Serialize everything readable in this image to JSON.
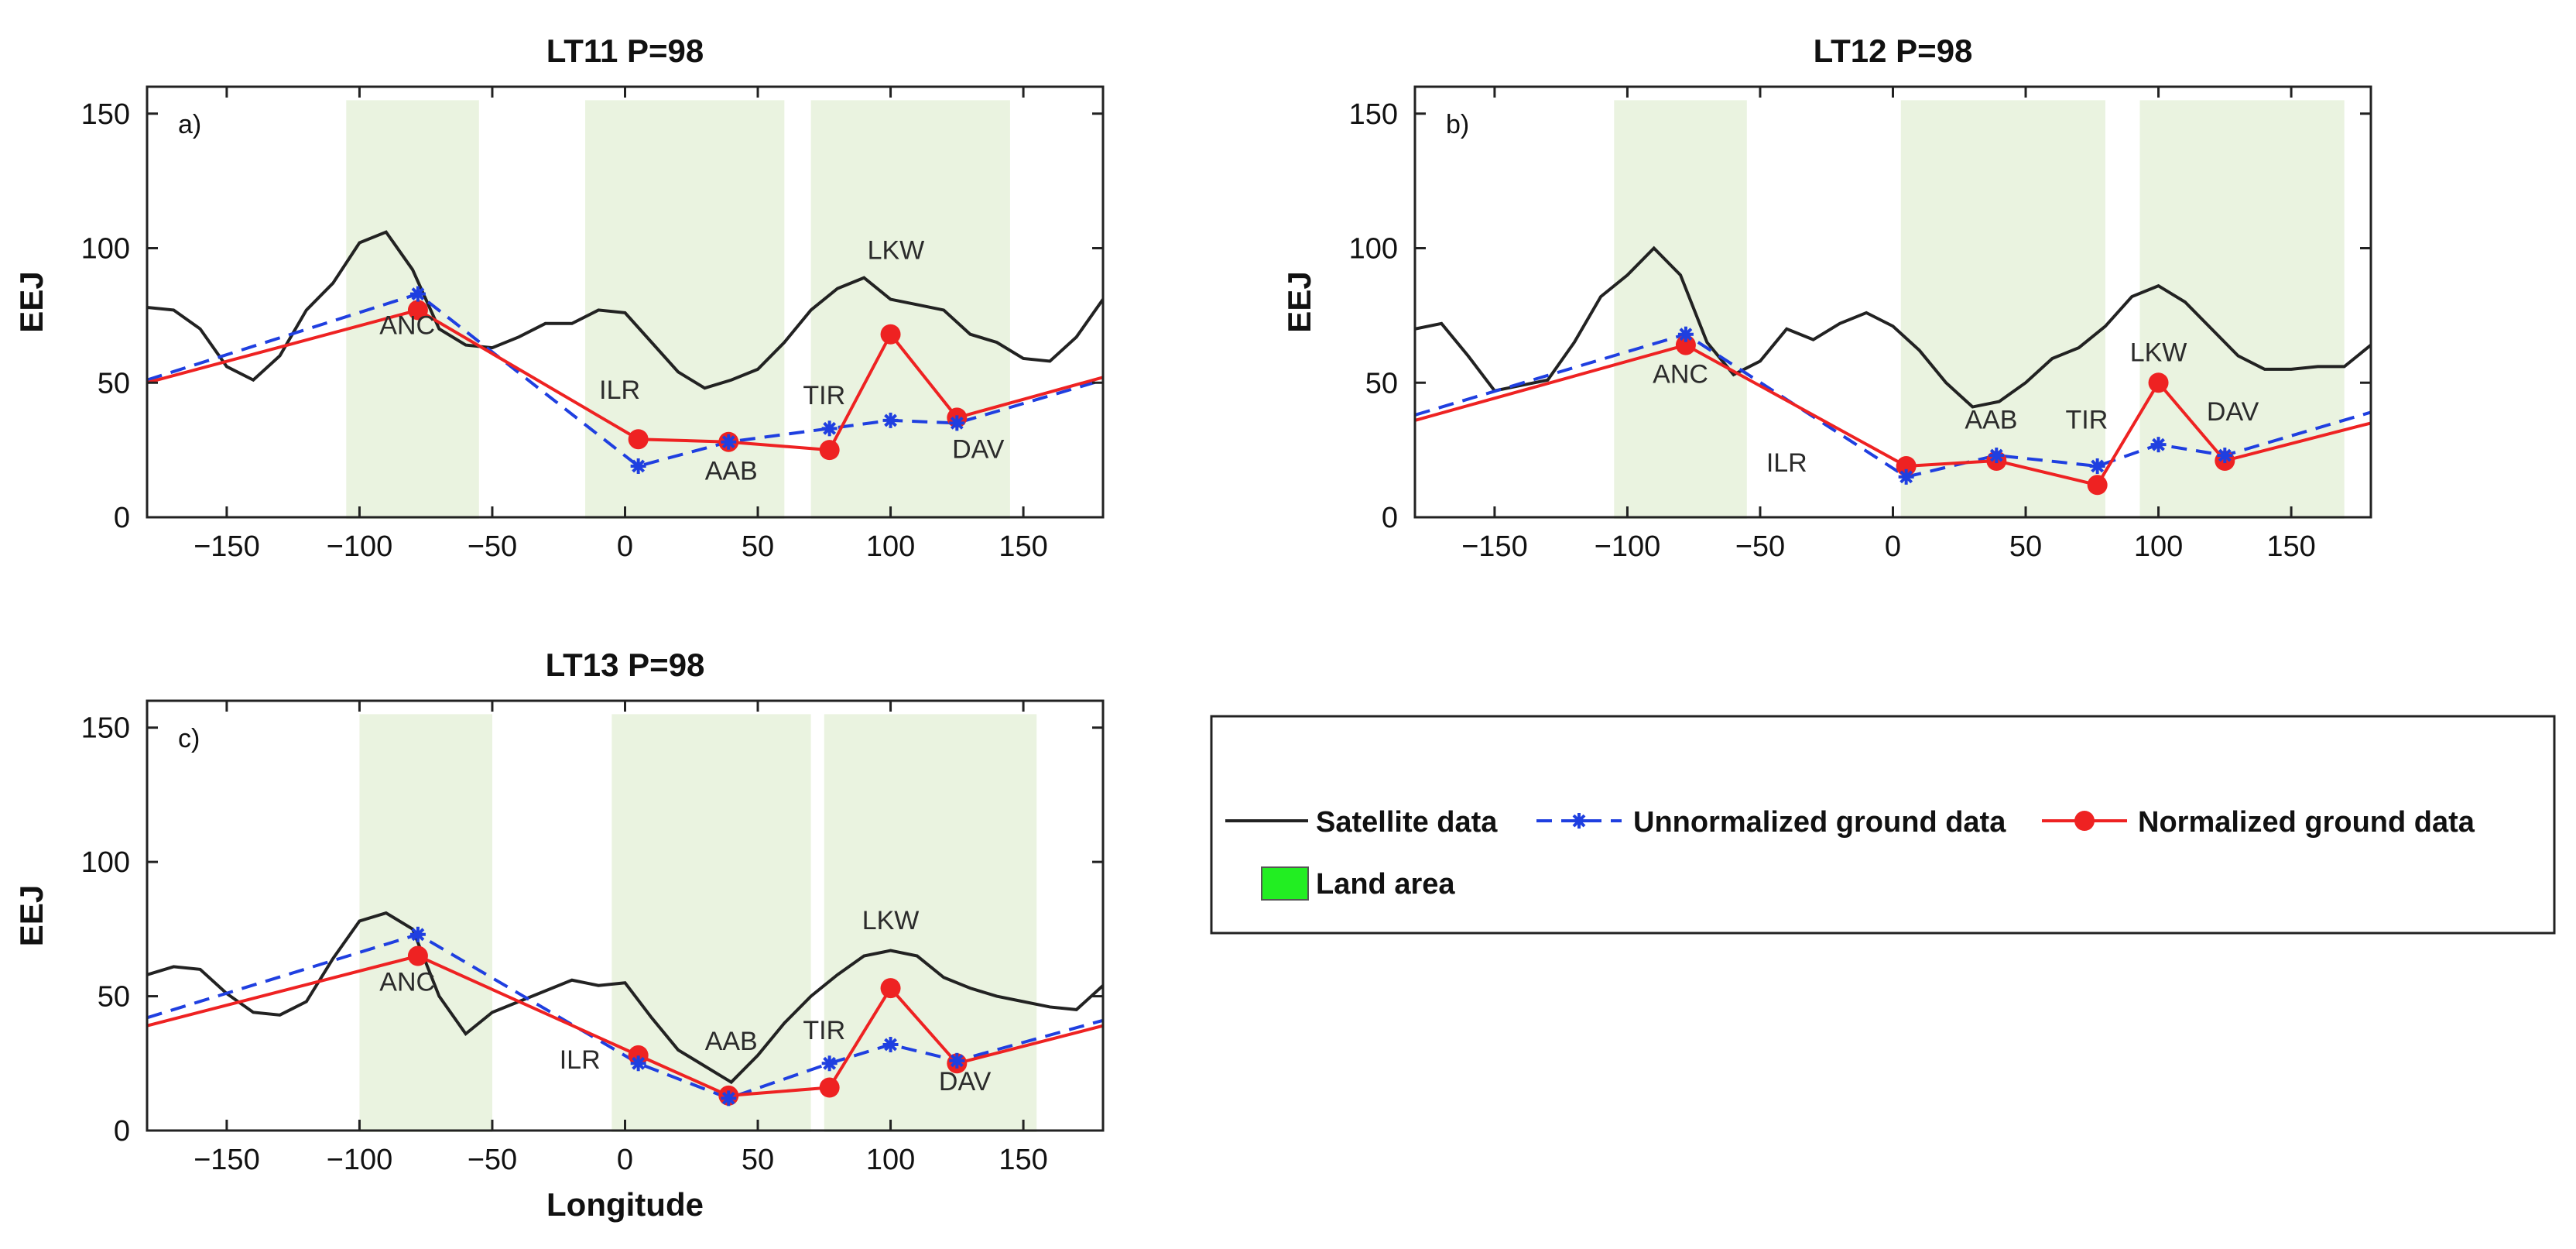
{
  "legend": {
    "satellite": "Satellite data",
    "unnormalized": "Unnormalized ground data",
    "normalized": "Normalized ground data",
    "land": "Land area"
  },
  "colors": {
    "satellite": "#222222",
    "unnormalized": "#1f3fe0",
    "normalized": "#ee2222",
    "land_fill": "#eaf3e0",
    "land_legend": "#22ee22"
  },
  "chart_data": [
    {
      "type": "line",
      "id": "a",
      "title": "LT11 P=98",
      "panel_label": "a)",
      "ylabel": "EEJ",
      "xlabel": "",
      "xlim": [
        -180,
        180
      ],
      "ylim": [
        0,
        160
      ],
      "xticks": [
        -150,
        -100,
        -50,
        0,
        50,
        100,
        150
      ],
      "yticks": [
        0,
        50,
        100,
        150
      ],
      "land_areas": [
        [
          -105,
          -55
        ],
        [
          -15,
          60
        ],
        [
          70,
          145
        ]
      ],
      "satellite": {
        "x": [
          -180,
          -170,
          -160,
          -150,
          -140,
          -130,
          -120,
          -110,
          -100,
          -90,
          -80,
          -70,
          -60,
          -50,
          -40,
          -30,
          -20,
          -10,
          0,
          10,
          20,
          30,
          40,
          50,
          60,
          70,
          80,
          90,
          100,
          110,
          120,
          130,
          140,
          150,
          160,
          170,
          180
        ],
        "y": [
          78,
          77,
          70,
          56,
          51,
          60,
          77,
          87,
          102,
          106,
          92,
          70,
          64,
          63,
          67,
          72,
          72,
          77,
          76,
          65,
          54,
          48,
          51,
          55,
          65,
          77,
          85,
          89,
          81,
          79,
          77,
          68,
          65,
          59,
          58,
          67,
          81
        ]
      },
      "unnormalized": {
        "x": [
          -180,
          -78,
          5,
          39,
          77,
          100,
          125,
          180
        ],
        "y": [
          51,
          83,
          19,
          28,
          33,
          36,
          35,
          51
        ]
      },
      "normalized": {
        "x": [
          -180,
          -78,
          5,
          39,
          77,
          100,
          125,
          180
        ],
        "y": [
          50,
          77,
          29,
          28,
          25,
          68,
          37,
          52
        ]
      },
      "stations": [
        {
          "name": "ANC",
          "x": -82,
          "y": 68
        },
        {
          "name": "ILR",
          "x": -2,
          "y": 44
        },
        {
          "name": "AAB",
          "x": 40,
          "y": 14
        },
        {
          "name": "TIR",
          "x": 75,
          "y": 42
        },
        {
          "name": "LKW",
          "x": 102,
          "y": 96
        },
        {
          "name": "DAV",
          "x": 133,
          "y": 22
        }
      ]
    },
    {
      "type": "line",
      "id": "b",
      "title": "LT12 P=98",
      "panel_label": "b)",
      "ylabel": "EEJ",
      "xlabel": "",
      "xlim": [
        -180,
        180
      ],
      "ylim": [
        0,
        160
      ],
      "xticks": [
        -150,
        -100,
        -50,
        0,
        50,
        100,
        150
      ],
      "yticks": [
        0,
        50,
        100,
        150
      ],
      "land_areas": [
        [
          -105,
          -55
        ],
        [
          3,
          80
        ],
        [
          93,
          170
        ]
      ],
      "satellite": {
        "x": [
          -180,
          -170,
          -160,
          -150,
          -140,
          -130,
          -120,
          -110,
          -100,
          -90,
          -80,
          -70,
          -60,
          -50,
          -40,
          -30,
          -20,
          -10,
          0,
          10,
          20,
          30,
          40,
          50,
          60,
          70,
          80,
          90,
          100,
          110,
          120,
          130,
          140,
          150,
          160,
          170,
          180
        ],
        "y": [
          70,
          72,
          60,
          47,
          49,
          51,
          65,
          82,
          90,
          100,
          90,
          65,
          53,
          58,
          70,
          66,
          72,
          76,
          71,
          62,
          50,
          41,
          43,
          50,
          59,
          63,
          71,
          82,
          86,
          80,
          70,
          60,
          55,
          55,
          56,
          56,
          64
        ]
      },
      "unnormalized": {
        "x": [
          -180,
          -78,
          5,
          39,
          77,
          100,
          125,
          180
        ],
        "y": [
          38,
          68,
          15,
          23,
          19,
          27,
          23,
          39
        ]
      },
      "normalized": {
        "x": [
          -180,
          -78,
          5,
          39,
          77,
          100,
          125,
          180
        ],
        "y": [
          36,
          64,
          19,
          21,
          12,
          50,
          21,
          35
        ]
      },
      "stations": [
        {
          "name": "ANC",
          "x": -80,
          "y": 50
        },
        {
          "name": "ILR",
          "x": -40,
          "y": 17
        },
        {
          "name": "AAB",
          "x": 37,
          "y": 33
        },
        {
          "name": "TIR",
          "x": 73,
          "y": 33
        },
        {
          "name": "LKW",
          "x": 100,
          "y": 58
        },
        {
          "name": "DAV",
          "x": 128,
          "y": 36
        }
      ]
    },
    {
      "type": "line",
      "id": "c",
      "title": "LT13 P=98",
      "panel_label": "c)",
      "ylabel": "EEJ",
      "xlabel": "Longitude",
      "xlim": [
        -180,
        180
      ],
      "ylim": [
        0,
        160
      ],
      "xticks": [
        -150,
        -100,
        -50,
        0,
        50,
        100,
        150
      ],
      "yticks": [
        0,
        50,
        100,
        150
      ],
      "land_areas": [
        [
          -100,
          -50
        ],
        [
          -5,
          70
        ],
        [
          75,
          155
        ]
      ],
      "satellite": {
        "x": [
          -180,
          -170,
          -160,
          -150,
          -140,
          -130,
          -120,
          -110,
          -100,
          -90,
          -80,
          -70,
          -60,
          -50,
          -40,
          -30,
          -20,
          -10,
          0,
          10,
          20,
          30,
          40,
          50,
          60,
          70,
          80,
          90,
          100,
          110,
          120,
          130,
          140,
          150,
          160,
          170,
          180
        ],
        "y": [
          58,
          61,
          60,
          51,
          44,
          43,
          48,
          64,
          78,
          81,
          75,
          50,
          36,
          44,
          48,
          52,
          56,
          54,
          55,
          42,
          30,
          24,
          18,
          28,
          40,
          50,
          58,
          65,
          67,
          65,
          57,
          53,
          50,
          48,
          46,
          45,
          54
        ]
      },
      "unnormalized": {
        "x": [
          -180,
          -78,
          5,
          39,
          77,
          100,
          125,
          180
        ],
        "y": [
          42,
          73,
          25,
          12,
          25,
          32,
          26,
          41
        ]
      },
      "normalized": {
        "x": [
          -180,
          -78,
          5,
          39,
          77,
          100,
          125,
          180
        ],
        "y": [
          39,
          65,
          28,
          13,
          16,
          53,
          25,
          39
        ]
      },
      "stations": [
        {
          "name": "ANC",
          "x": -82,
          "y": 52
        },
        {
          "name": "ILR",
          "x": -17,
          "y": 23
        },
        {
          "name": "AAB",
          "x": 40,
          "y": 30
        },
        {
          "name": "TIR",
          "x": 75,
          "y": 34
        },
        {
          "name": "LKW",
          "x": 100,
          "y": 75
        },
        {
          "name": "DAV",
          "x": 128,
          "y": 15
        }
      ]
    }
  ]
}
